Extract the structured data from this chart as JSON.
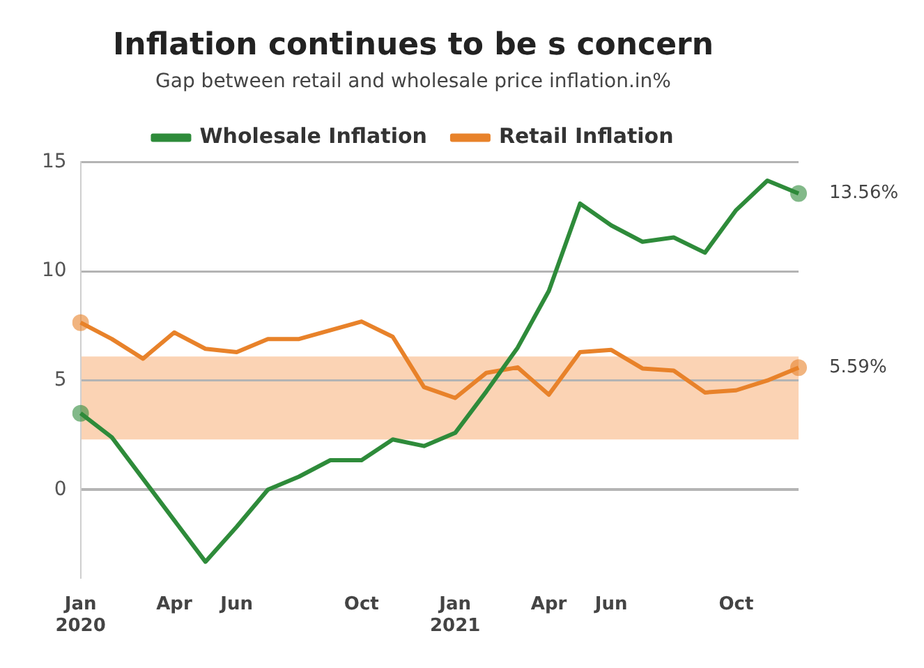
{
  "chart_data": {
    "type": "line",
    "title": "Inflation continues to be s concern",
    "subtitle": "Gap between retail and wholesale price inflation.in%",
    "categories": [
      "Jan 2020",
      null,
      null,
      "Apr",
      null,
      "Jun",
      null,
      null,
      null,
      "Oct",
      null,
      null,
      "Jan 2021",
      null,
      null,
      "Apr",
      null,
      "Jun",
      null,
      null,
      null,
      "Oct",
      null,
      null
    ],
    "series": [
      {
        "name": "Wholesale Inflation",
        "color": "#2e8b3a",
        "values": [
          3.5,
          2.4,
          0.5,
          -1.4,
          -3.3,
          -1.7,
          0.0,
          0.6,
          1.35,
          1.35,
          2.3,
          2.0,
          2.6,
          4.5,
          6.5,
          9.1,
          13.1,
          12.1,
          11.35,
          11.55,
          10.85,
          12.8,
          14.15,
          13.56
        ],
        "value_labels": [
          null,
          null,
          null,
          null,
          null,
          null,
          null,
          null,
          null,
          null,
          null,
          null,
          null,
          null,
          null,
          null,
          null,
          null,
          null,
          null,
          null,
          null,
          null,
          "13.56%"
        ]
      },
      {
        "name": "Retail Inflation",
        "color": "#e8822a",
        "values": [
          7.65,
          6.9,
          6.0,
          7.2,
          6.45,
          6.3,
          6.9,
          6.9,
          7.3,
          7.7,
          7.0,
          4.7,
          4.2,
          5.35,
          5.6,
          4.35,
          6.3,
          6.4,
          5.55,
          5.45,
          4.45,
          4.55,
          5.0,
          5.59
        ],
        "value_labels": [
          null,
          null,
          null,
          null,
          null,
          null,
          null,
          null,
          null,
          null,
          null,
          null,
          null,
          null,
          null,
          null,
          null,
          null,
          null,
          null,
          null,
          null,
          null,
          "5.59%"
        ]
      }
    ],
    "bands": [
      {
        "axis": "y",
        "from": 2.3,
        "to": 6.1,
        "color": "#fbd3b4"
      }
    ],
    "ylim": [
      -4,
      15
    ],
    "yticks": [
      0,
      5,
      10,
      15
    ],
    "grid": "y",
    "legend": "top"
  }
}
